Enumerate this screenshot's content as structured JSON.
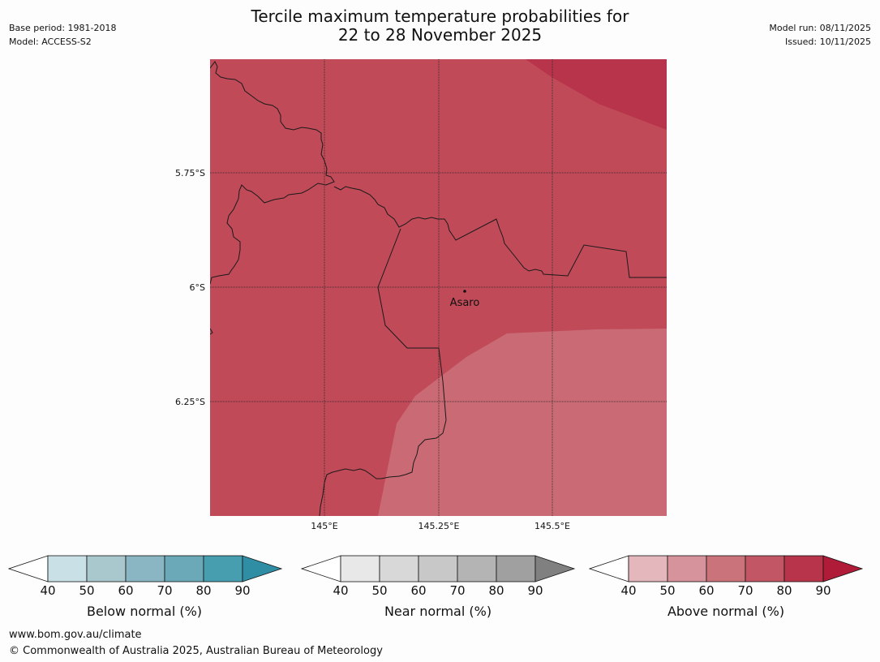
{
  "header": {
    "title_line1": "Tercile maximum temperature probabilities for",
    "title_line2": "22 to 28 November 2025",
    "base_period": "Base period: 1981-2018",
    "model": "Model: ACCESS-S2",
    "model_run": "Model run: 08/11/2025",
    "issued": "Issued: 10/11/2025"
  },
  "map": {
    "lat_labels": [
      "5.75°S",
      "6°S",
      "6.25°S"
    ],
    "lon_labels": [
      "145°E",
      "145.25°E",
      "145.5°E"
    ],
    "place_label": "Asaro",
    "colors": {
      "dark_red": "#b8344a",
      "mid_red": "#c04a58",
      "light_red": "#ca6a74"
    }
  },
  "legends": {
    "below": {
      "title": "Below normal (%)",
      "ticks": [
        "40",
        "50",
        "60",
        "70",
        "80",
        "90"
      ],
      "colors": [
        "#ffffff",
        "#c9e1e6",
        "#a9c8ce",
        "#89b6c2",
        "#6ba9b8",
        "#479eaf",
        "#2f8ea3"
      ]
    },
    "near": {
      "title": "Near normal (%)",
      "ticks": [
        "40",
        "50",
        "60",
        "70",
        "80",
        "90"
      ],
      "colors": [
        "#ffffff",
        "#e8e8e8",
        "#d8d8d8",
        "#c8c8c8",
        "#b4b4b4",
        "#a0a0a0",
        "#808080"
      ]
    },
    "above": {
      "title": "Above normal (%)",
      "ticks": [
        "40",
        "50",
        "60",
        "70",
        "80",
        "90"
      ],
      "colors": [
        "#ffffff",
        "#e3b7bc",
        "#d6939b",
        "#ca737b",
        "#c25664",
        "#b8344a",
        "#b01c38"
      ]
    }
  },
  "footer": {
    "url": "www.bom.gov.au/climate",
    "copyright": "© Commonwealth of Australia 2025, Australian Bureau of Meteorology"
  }
}
